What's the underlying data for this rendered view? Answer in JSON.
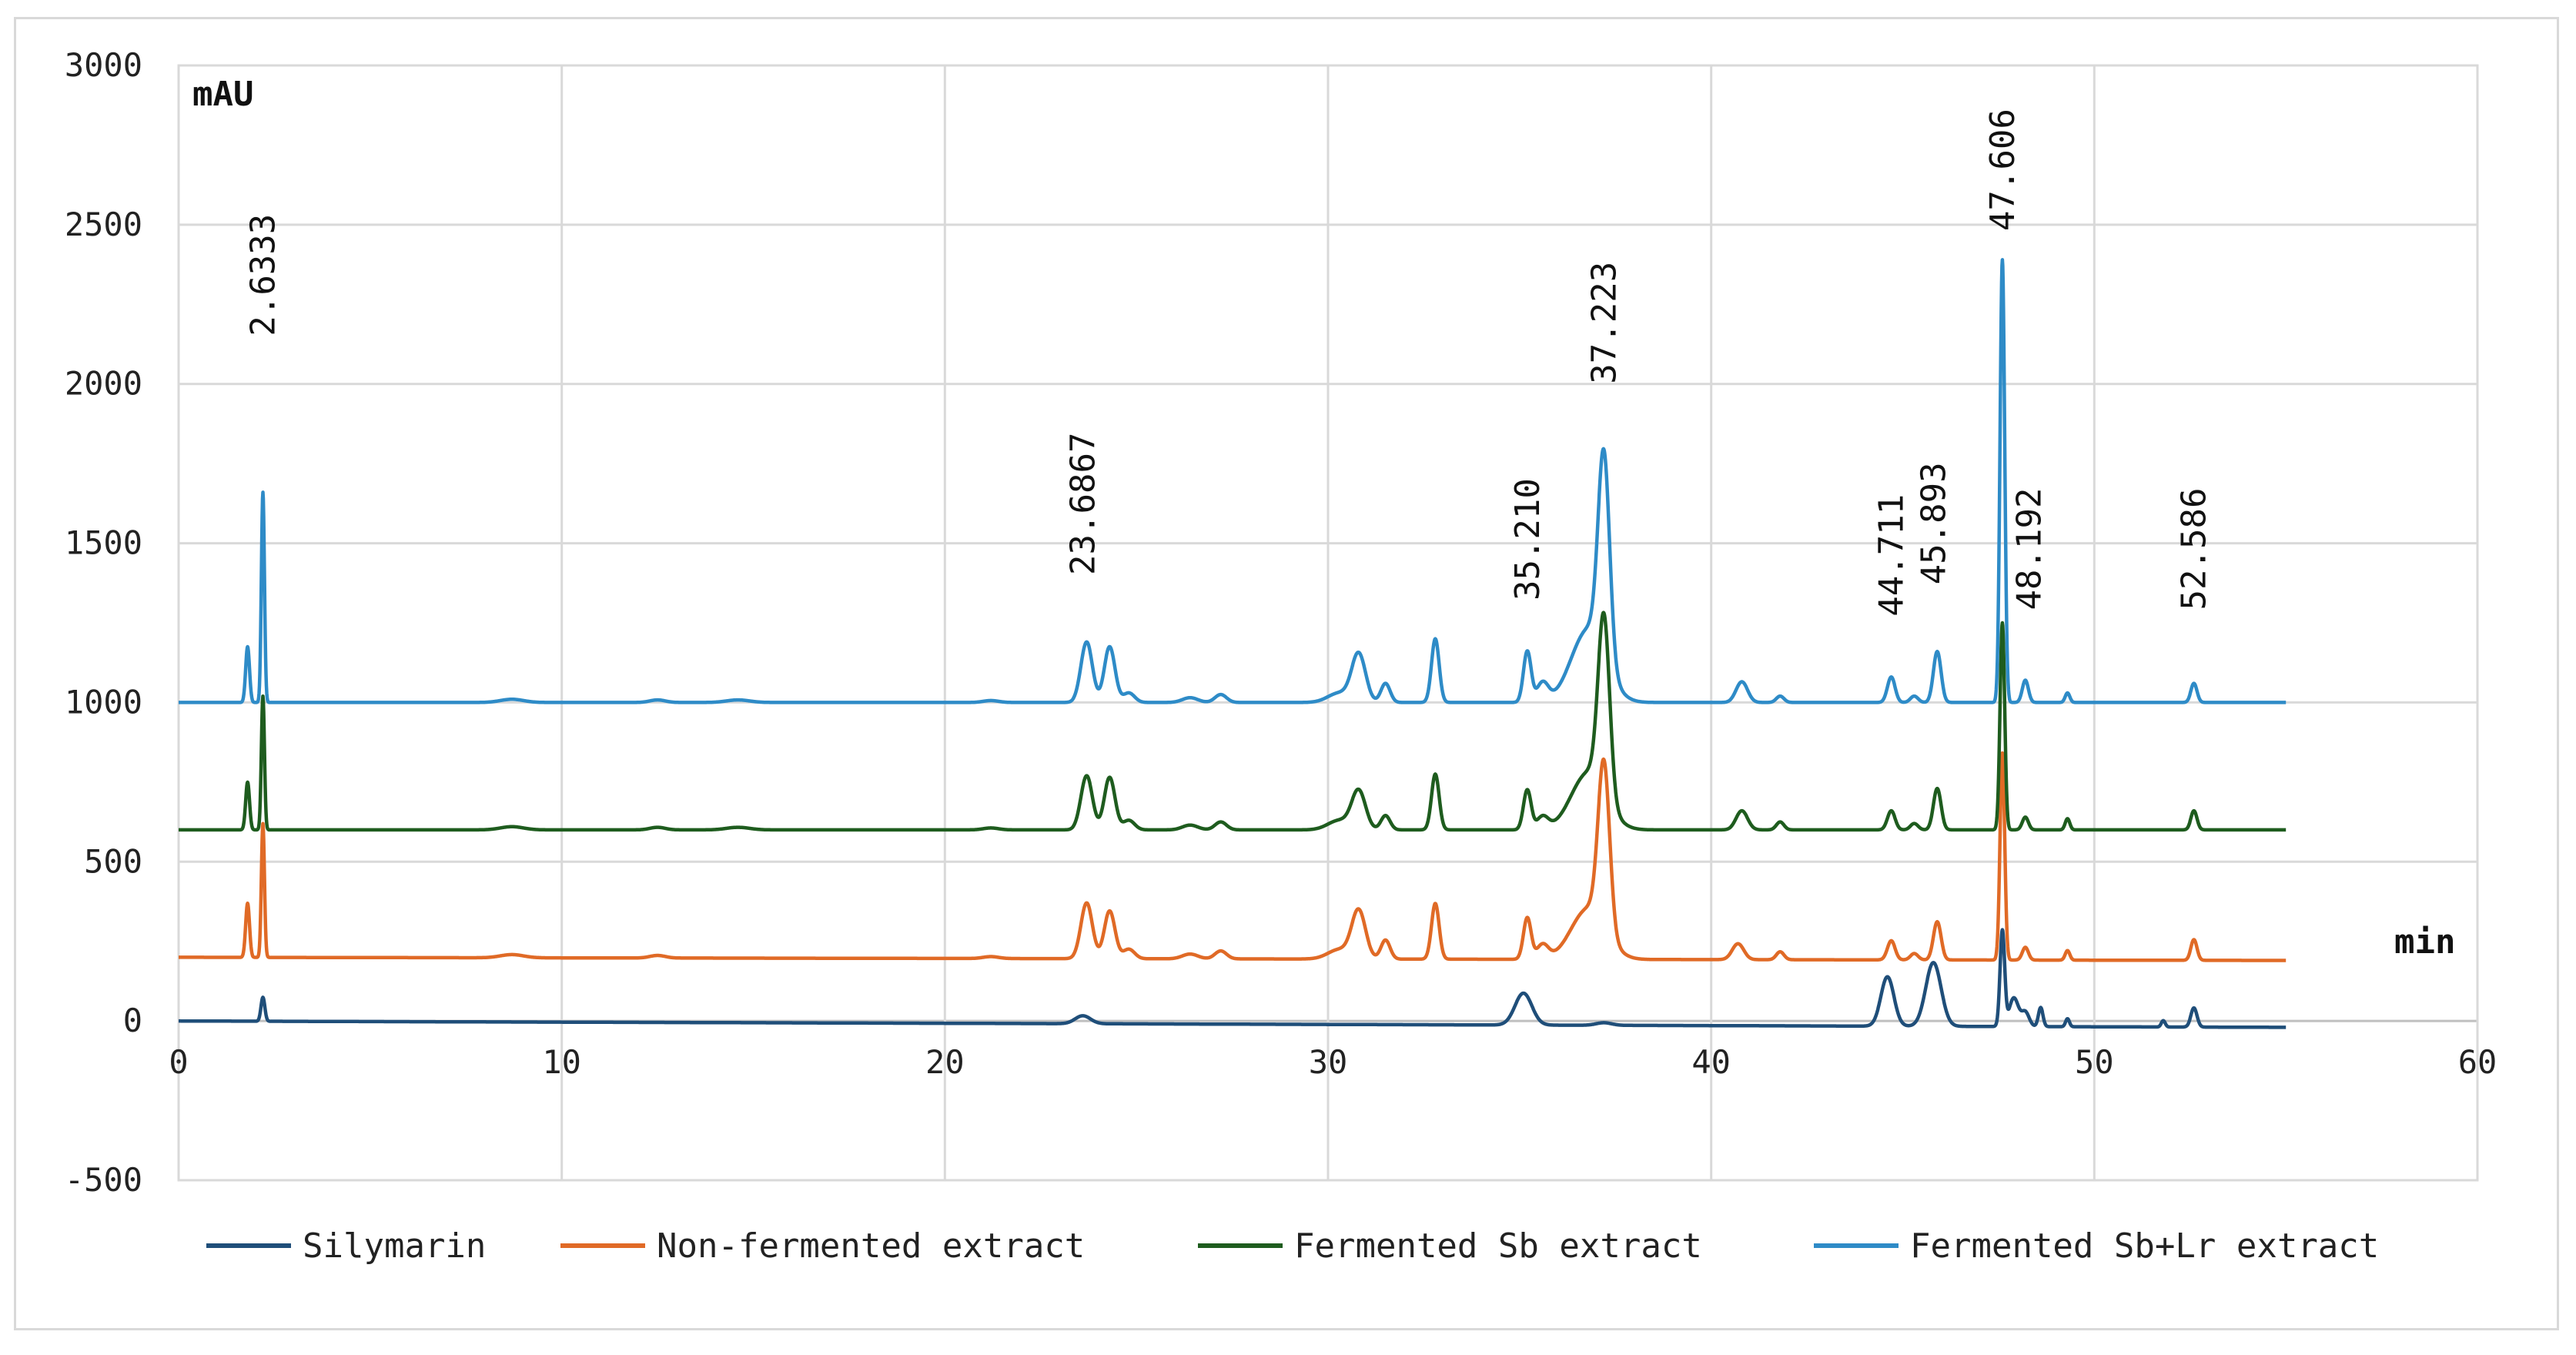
{
  "chart_data": {
    "type": "line",
    "title": "",
    "xlabel": "min",
    "ylabel": "mAU",
    "xlim": [
      0,
      60
    ],
    "ylim": [
      -500,
      3000
    ],
    "x_ticks": [
      0,
      10,
      20,
      30,
      40,
      50,
      60
    ],
    "y_ticks": [
      -500,
      0,
      500,
      1000,
      1500,
      2000,
      2500,
      3000
    ],
    "grid": true,
    "legend_position": "bottom",
    "peak_labels": [
      {
        "text": "2.6333",
        "x": 2.2,
        "y": 2150
      },
      {
        "text": "23.6867",
        "x": 23.6,
        "y": 1400
      },
      {
        "text": "35.210",
        "x": 35.2,
        "y": 1320
      },
      {
        "text": "37.223",
        "x": 37.2,
        "y": 2000
      },
      {
        "text": "44.711",
        "x": 44.7,
        "y": 1270
      },
      {
        "text": "45.893",
        "x": 45.8,
        "y": 1370
      },
      {
        "text": "47.606",
        "x": 47.6,
        "y": 2480
      },
      {
        "text": "48.192",
        "x": 48.3,
        "y": 1290
      },
      {
        "text": "52.586",
        "x": 52.6,
        "y": 1290
      }
    ],
    "series": [
      {
        "name": "Silymarin",
        "color": "#1f4e79",
        "baseline": 0,
        "baseline_end": -20,
        "peaks": [
          [
            2.2,
            75,
            0.05
          ],
          [
            23.6,
            25,
            0.2
          ],
          [
            35.1,
            100,
            0.22
          ],
          [
            37.2,
            8,
            0.2
          ],
          [
            44.6,
            155,
            0.17
          ],
          [
            45.8,
            200,
            0.2
          ],
          [
            47.6,
            300,
            0.06
          ],
          [
            47.9,
            90,
            0.12
          ],
          [
            48.2,
            45,
            0.1
          ],
          [
            48.6,
            60,
            0.06
          ],
          [
            49.3,
            25,
            0.05
          ],
          [
            51.8,
            20,
            0.05
          ],
          [
            52.6,
            60,
            0.08
          ]
        ]
      },
      {
        "name": "Non-fermented extract",
        "color": "#e06a26",
        "baseline": 200,
        "baseline_end": 190,
        "peaks": [
          [
            1.8,
            170,
            0.05
          ],
          [
            2.2,
            420,
            0.04
          ],
          [
            8.7,
            10,
            0.3
          ],
          [
            12.5,
            8,
            0.2
          ],
          [
            21.2,
            6,
            0.2
          ],
          [
            23.7,
            175,
            0.15
          ],
          [
            24.3,
            150,
            0.14
          ],
          [
            24.8,
            30,
            0.15
          ],
          [
            26.4,
            15,
            0.2
          ],
          [
            27.2,
            25,
            0.15
          ],
          [
            30.3,
            30,
            0.3
          ],
          [
            30.8,
            150,
            0.18
          ],
          [
            31.5,
            60,
            0.12
          ],
          [
            32.8,
            175,
            0.1
          ],
          [
            35.2,
            130,
            0.1
          ],
          [
            35.6,
            45,
            0.15
          ],
          [
            36.8,
            160,
            0.45
          ],
          [
            37.2,
            520,
            0.15
          ],
          [
            40.7,
            50,
            0.15
          ],
          [
            41.8,
            25,
            0.1
          ],
          [
            44.7,
            60,
            0.1
          ],
          [
            45.3,
            20,
            0.1
          ],
          [
            45.9,
            120,
            0.1
          ],
          [
            47.6,
            650,
            0.06
          ],
          [
            48.2,
            40,
            0.08
          ],
          [
            49.3,
            30,
            0.06
          ],
          [
            52.6,
            65,
            0.08
          ]
        ]
      },
      {
        "name": "Fermented Sb extract",
        "color": "#1e5c1e",
        "baseline": 600,
        "baseline_end": 600,
        "peaks": [
          [
            1.8,
            150,
            0.05
          ],
          [
            2.2,
            420,
            0.04
          ],
          [
            8.7,
            10,
            0.3
          ],
          [
            12.5,
            8,
            0.2
          ],
          [
            14.6,
            8,
            0.3
          ],
          [
            21.2,
            6,
            0.2
          ],
          [
            23.7,
            170,
            0.15
          ],
          [
            24.3,
            165,
            0.14
          ],
          [
            24.8,
            30,
            0.15
          ],
          [
            26.4,
            15,
            0.2
          ],
          [
            27.2,
            25,
            0.15
          ],
          [
            30.3,
            30,
            0.3
          ],
          [
            30.8,
            120,
            0.18
          ],
          [
            31.5,
            45,
            0.12
          ],
          [
            32.8,
            175,
            0.1
          ],
          [
            35.2,
            125,
            0.1
          ],
          [
            35.6,
            40,
            0.15
          ],
          [
            36.8,
            180,
            0.45
          ],
          [
            37.2,
            560,
            0.15
          ],
          [
            40.8,
            60,
            0.15
          ],
          [
            41.8,
            25,
            0.1
          ],
          [
            44.7,
            60,
            0.1
          ],
          [
            45.3,
            20,
            0.1
          ],
          [
            45.9,
            130,
            0.1
          ],
          [
            47.6,
            650,
            0.06
          ],
          [
            48.2,
            40,
            0.08
          ],
          [
            49.3,
            35,
            0.06
          ],
          [
            52.6,
            60,
            0.08
          ]
        ]
      },
      {
        "name": "Fermented Sb+Lr extract",
        "color": "#2e8bc7",
        "baseline": 1000,
        "baseline_end": 1000,
        "peaks": [
          [
            1.8,
            175,
            0.05
          ],
          [
            2.2,
            660,
            0.04
          ],
          [
            8.7,
            10,
            0.3
          ],
          [
            12.5,
            8,
            0.2
          ],
          [
            14.6,
            8,
            0.3
          ],
          [
            21.2,
            6,
            0.2
          ],
          [
            23.7,
            190,
            0.15
          ],
          [
            24.3,
            175,
            0.14
          ],
          [
            24.8,
            30,
            0.15
          ],
          [
            26.4,
            15,
            0.2
          ],
          [
            27.2,
            25,
            0.15
          ],
          [
            30.3,
            30,
            0.3
          ],
          [
            30.8,
            150,
            0.18
          ],
          [
            31.5,
            60,
            0.12
          ],
          [
            32.8,
            200,
            0.1
          ],
          [
            35.2,
            160,
            0.1
          ],
          [
            35.6,
            60,
            0.15
          ],
          [
            36.8,
            230,
            0.45
          ],
          [
            37.2,
            640,
            0.15
          ],
          [
            40.8,
            65,
            0.15
          ],
          [
            41.8,
            20,
            0.1
          ],
          [
            44.7,
            80,
            0.1
          ],
          [
            45.3,
            20,
            0.1
          ],
          [
            45.9,
            160,
            0.1
          ],
          [
            47.6,
            1390,
            0.06
          ],
          [
            48.2,
            70,
            0.08
          ],
          [
            49.3,
            30,
            0.06
          ],
          [
            52.6,
            60,
            0.08
          ]
        ]
      }
    ],
    "x_end": 55
  }
}
